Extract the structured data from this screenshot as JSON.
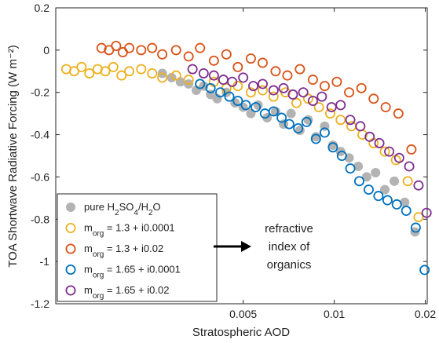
{
  "chart_data": {
    "type": "scatter",
    "xlabel": "Stratospheric AOD",
    "ylabel": "TOA Shortwave Radiative Forcing (W m⁻²)",
    "xlim": [
      0.0012,
      0.0203
    ],
    "ylim": [
      -1.2,
      0.2
    ],
    "x_ticks": [
      0.005,
      0.01,
      0.02
    ],
    "x_tick_labels": [
      "0.005",
      "0.01",
      "0.02"
    ],
    "y_ticks": [
      0.2,
      0,
      -0.2,
      -0.4,
      -0.6,
      -0.8,
      -1,
      -1.2
    ],
    "y_tick_labels": [
      "0.2",
      "0",
      "-0.2",
      "-0.4",
      "-0.6",
      "-0.8",
      "-1",
      "-1.2"
    ],
    "x_scale": "log",
    "grid": false,
    "legend_position": "bottom-left",
    "annotation": {
      "lines": [
        "refractive",
        "index of",
        "organics"
      ],
      "arrow": "right"
    },
    "series": [
      {
        "name": "pure H2SO4/H2O",
        "legend": {
          "pre": "pure H",
          "sub1": "2",
          "mid1": "SO",
          "sub2": "4",
          "mid2": "/H",
          "sub3": "2",
          "post": "O"
        },
        "color": "#B3B3B3",
        "marker": "filled-circle",
        "x": [
          0.0027,
          0.0029,
          0.0031,
          0.0033,
          0.0035,
          0.0037,
          0.0039,
          0.0041,
          0.0044,
          0.0047,
          0.005,
          0.0053,
          0.0056,
          0.006,
          0.0064,
          0.0068,
          0.0072,
          0.0077,
          0.0082,
          0.0087,
          0.0093,
          0.0099,
          0.0105,
          0.0112,
          0.012,
          0.0128,
          0.0137,
          0.0147,
          0.0158,
          0.0171,
          0.0185
        ],
        "y": [
          -0.11,
          -0.13,
          -0.15,
          -0.16,
          -0.19,
          -0.17,
          -0.21,
          -0.23,
          -0.2,
          -0.25,
          -0.27,
          -0.3,
          -0.26,
          -0.32,
          -0.29,
          -0.35,
          -0.3,
          -0.38,
          -0.33,
          -0.41,
          -0.36,
          -0.45,
          -0.48,
          -0.51,
          -0.55,
          -0.6,
          -0.58,
          -0.66,
          -0.62,
          -0.72,
          -0.86
        ]
      },
      {
        "name": "m_org = 1.3 + i0.0001",
        "legend": {
          "pre": "m",
          "sub1": "org",
          "post": " = 1.3 + i0.0001"
        },
        "color": "#EDB120",
        "marker": "open-circle",
        "x": [
          0.0013,
          0.00138,
          0.00146,
          0.00155,
          0.00165,
          0.00175,
          0.00186,
          0.00198,
          0.0021,
          0.0023,
          0.0025,
          0.0027,
          0.003,
          0.0033,
          0.0036,
          0.004,
          0.0044,
          0.0048,
          0.0053,
          0.0058,
          0.0063,
          0.0069,
          0.0075,
          0.0082,
          0.0089,
          0.0097,
          0.0105,
          0.0114,
          0.0124,
          0.0135,
          0.0147,
          0.016,
          0.0175,
          0.019
        ],
        "y": [
          -0.09,
          -0.1,
          -0.08,
          -0.11,
          -0.09,
          -0.1,
          -0.08,
          -0.12,
          -0.1,
          -0.09,
          -0.11,
          -0.13,
          -0.12,
          -0.14,
          -0.16,
          -0.15,
          -0.18,
          -0.17,
          -0.2,
          -0.19,
          -0.22,
          -0.2,
          -0.25,
          -0.23,
          -0.27,
          -0.3,
          -0.33,
          -0.36,
          -0.4,
          -0.44,
          -0.48,
          -0.52,
          -0.62,
          -0.79
        ]
      },
      {
        "name": "m_org = 1.3 + i0.02",
        "legend": {
          "pre": "m",
          "sub1": "org",
          "post": " = 1.3 + i0.02"
        },
        "color": "#D95319",
        "marker": "open-circle",
        "x": [
          0.0017,
          0.0018,
          0.0019,
          0.002,
          0.0021,
          0.0023,
          0.0025,
          0.0027,
          0.003,
          0.0033,
          0.0036,
          0.004,
          0.0044,
          0.0048,
          0.0053,
          0.0058,
          0.0064,
          0.007,
          0.0077,
          0.0085,
          0.0093,
          0.0102,
          0.0112,
          0.0123,
          0.0135,
          0.0148,
          0.0163,
          0.018
        ],
        "y": [
          0.01,
          0.0,
          0.02,
          -0.01,
          0.01,
          0.0,
          0.01,
          -0.02,
          0.0,
          -0.03,
          0.01,
          -0.05,
          -0.02,
          -0.08,
          -0.04,
          -0.06,
          -0.1,
          -0.12,
          -0.09,
          -0.14,
          -0.17,
          -0.15,
          -0.2,
          -0.18,
          -0.23,
          -0.27,
          -0.3,
          -0.47
        ]
      },
      {
        "name": "m_org = 1.65 + i0.0001",
        "legend": {
          "pre": "m",
          "sub1": "org",
          "post": " = 1.65 + i0.0001"
        },
        "color": "#0072BD",
        "marker": "open-circle",
        "x": [
          0.0036,
          0.0039,
          0.0042,
          0.0045,
          0.0048,
          0.0051,
          0.0055,
          0.0059,
          0.0063,
          0.0067,
          0.0071,
          0.0076,
          0.0081,
          0.0087,
          0.0093,
          0.0099,
          0.0106,
          0.0113,
          0.0121,
          0.013,
          0.014,
          0.015,
          0.0161,
          0.0173,
          0.0186,
          0.0199
        ],
        "y": [
          -0.16,
          -0.18,
          -0.2,
          -0.22,
          -0.24,
          -0.26,
          -0.27,
          -0.3,
          -0.29,
          -0.32,
          -0.35,
          -0.37,
          -0.34,
          -0.42,
          -0.39,
          -0.46,
          -0.5,
          -0.56,
          -0.62,
          -0.66,
          -0.69,
          -0.71,
          -0.73,
          -0.76,
          -0.84,
          -1.04
        ]
      },
      {
        "name": "m_org = 1.65 + i0.02",
        "legend": {
          "pre": "m",
          "sub1": "org",
          "post": " = 1.65 + i0.02"
        },
        "color": "#7E2F8E",
        "marker": "open-circle",
        "x": [
          0.0034,
          0.0037,
          0.004,
          0.0043,
          0.0046,
          0.005,
          0.0054,
          0.0058,
          0.0063,
          0.0068,
          0.0073,
          0.0079,
          0.0085,
          0.0091,
          0.0098,
          0.0105,
          0.0113,
          0.0122,
          0.0131,
          0.0141,
          0.0152,
          0.0164,
          0.0177,
          0.019,
          0.0202
        ],
        "y": [
          -0.09,
          -0.11,
          -0.12,
          -0.14,
          -0.15,
          -0.13,
          -0.17,
          -0.16,
          -0.19,
          -0.18,
          -0.21,
          -0.2,
          -0.24,
          -0.22,
          -0.27,
          -0.26,
          -0.33,
          -0.36,
          -0.41,
          -0.44,
          -0.48,
          -0.51,
          -0.55,
          -0.64,
          -0.77
        ]
      }
    ]
  }
}
